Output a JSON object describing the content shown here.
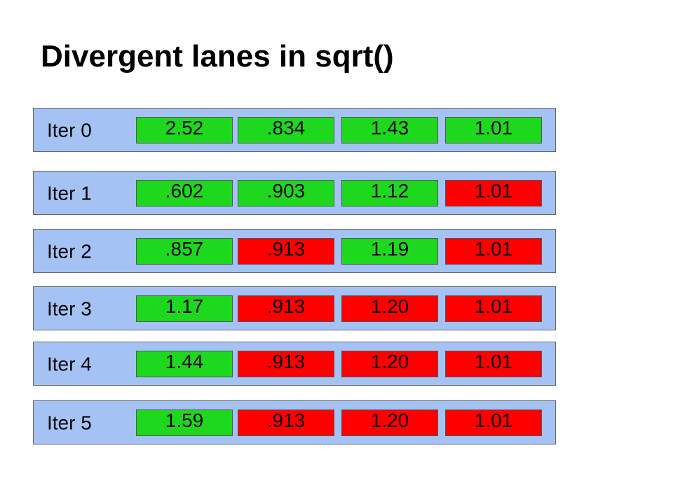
{
  "title": "Divergent lanes in sqrt()",
  "colors": {
    "row_background": "#a4c2f4",
    "converging": "#1ed81e",
    "done": "#ff0000"
  },
  "rows": [
    {
      "label": "Iter 0",
      "cells": [
        {
          "value": "2.52",
          "state": "converging"
        },
        {
          "value": ".834",
          "state": "converging"
        },
        {
          "value": "1.43",
          "state": "converging"
        },
        {
          "value": "1.01",
          "state": "converging"
        }
      ]
    },
    {
      "label": "Iter 1",
      "cells": [
        {
          "value": ".602",
          "state": "converging"
        },
        {
          "value": ".903",
          "state": "converging"
        },
        {
          "value": "1.12",
          "state": "converging"
        },
        {
          "value": "1.01",
          "state": "done"
        }
      ]
    },
    {
      "label": "Iter 2",
      "cells": [
        {
          "value": ".857",
          "state": "converging"
        },
        {
          "value": ".913",
          "state": "done"
        },
        {
          "value": "1.19",
          "state": "converging"
        },
        {
          "value": "1.01",
          "state": "done"
        }
      ]
    },
    {
      "label": "Iter 3",
      "cells": [
        {
          "value": "1.17",
          "state": "converging"
        },
        {
          "value": ".913",
          "state": "done"
        },
        {
          "value": "1.20",
          "state": "done"
        },
        {
          "value": "1.01",
          "state": "done"
        }
      ]
    },
    {
      "label": "Iter 4",
      "cells": [
        {
          "value": "1.44",
          "state": "converging"
        },
        {
          "value": ".913",
          "state": "done"
        },
        {
          "value": "1.20",
          "state": "done"
        },
        {
          "value": "1.01",
          "state": "done"
        }
      ]
    },
    {
      "label": "Iter 5",
      "cells": [
        {
          "value": "1.59",
          "state": "converging"
        },
        {
          "value": ".913",
          "state": "done"
        },
        {
          "value": "1.20",
          "state": "done"
        },
        {
          "value": "1.01",
          "state": "done"
        }
      ]
    }
  ]
}
